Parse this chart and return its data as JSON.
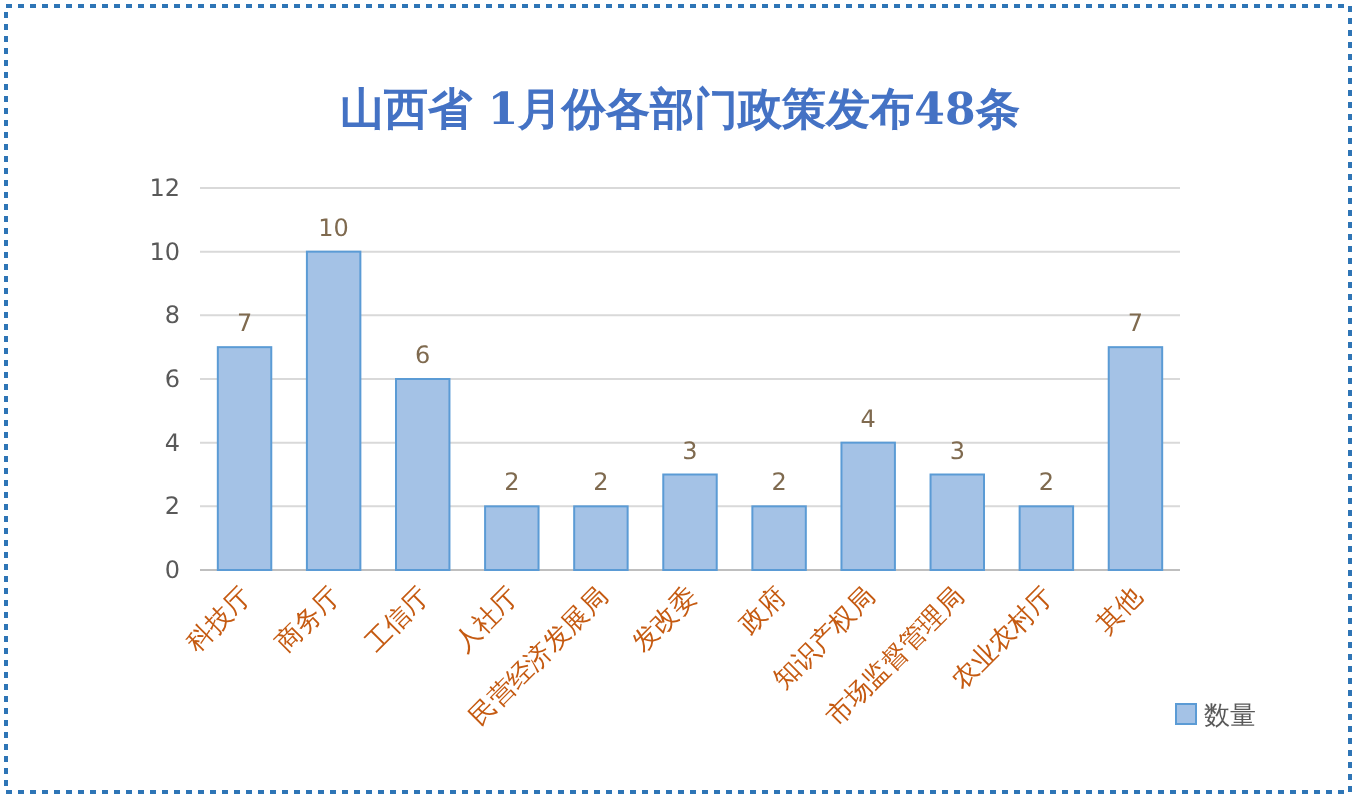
{
  "chart_data": {
    "type": "bar",
    "title": "山西省 1月份各部门政策发布48条",
    "categories": [
      "科技厅",
      "商务厅",
      "工信厅",
      "人社厅",
      "民营经济发展局",
      "发改委",
      "政府",
      "知识产权局",
      "市场监督管理局",
      "农业农村厅",
      "其他"
    ],
    "series": [
      {
        "name": "数量",
        "color": "#a4c2e6",
        "values": [
          7,
          10,
          6,
          2,
          2,
          3,
          2,
          4,
          3,
          2,
          7
        ]
      }
    ],
    "ylim": [
      0,
      12
    ],
    "yticks": [
      0,
      2,
      4,
      6,
      8,
      10,
      12
    ],
    "grid": "y",
    "data_labels": true,
    "legend": "bottom right"
  }
}
